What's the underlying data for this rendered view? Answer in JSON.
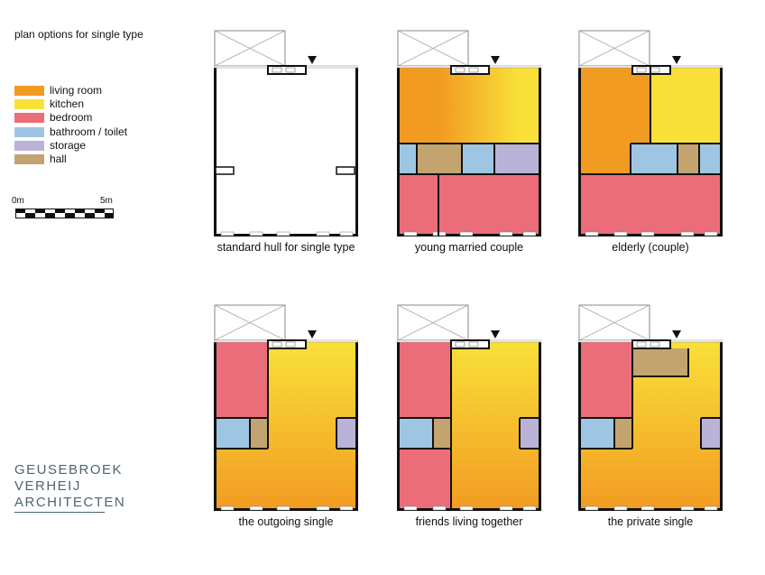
{
  "title": "plan options for single type",
  "colors": {
    "living": "#f29b22",
    "kitchen": "#f9e139",
    "bedroom": "#ec6d7a",
    "bath": "#9ec6e2",
    "storage": "#bab3d7",
    "hall": "#c3a470",
    "wall": "#111111"
  },
  "legend": [
    {
      "label": "living room",
      "color": "#f29b22"
    },
    {
      "label": "kitchen",
      "color": "#f9e139"
    },
    {
      "label": "bedroom",
      "color": "#ec6d7a"
    },
    {
      "label": "bathroom / toilet",
      "color": "#9ec6e2"
    },
    {
      "label": "storage",
      "color": "#bab3d7"
    },
    {
      "label": "hall",
      "color": "#c3a470"
    }
  ],
  "scale": {
    "start": "0m",
    "end": "5m"
  },
  "plans": [
    {
      "caption": "standard hull for single type"
    },
    {
      "caption": "young married couple"
    },
    {
      "caption": "elderly (couple)"
    },
    {
      "caption": "the outgoing single"
    },
    {
      "caption": "friends living together"
    },
    {
      "caption": "the private single"
    }
  ],
  "logo": {
    "line1": "GEUSEBROEK",
    "line2": "VERHEIJ",
    "line3": "ARCHITECTEN"
  }
}
